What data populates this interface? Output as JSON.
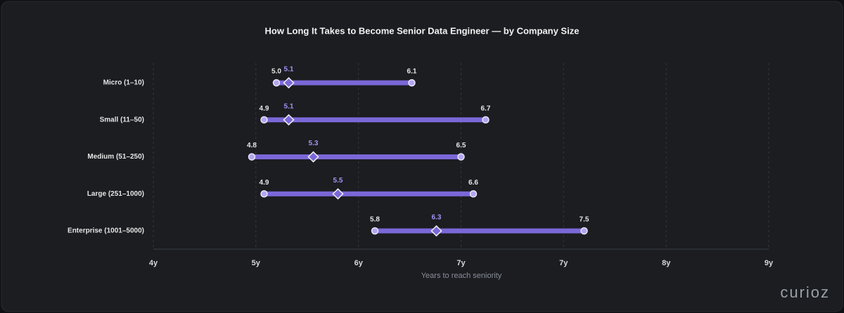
{
  "chart_data": {
    "type": "dumbbell",
    "title": "How Long It Takes to Become Senior Data Engineer — by Company Size",
    "x_label": "Years to reach seniority",
    "watermark": "curioz",
    "categories": [
      "Micro (1–10)",
      "Small (11–50)",
      "Medium (51–250)",
      "Large (251–1000)",
      "Enterprise (1001–5000)"
    ],
    "low": {
      "values": [
        5.0,
        4.9,
        4.8,
        4.9,
        5.8
      ],
      "value_labels": [
        "5.0",
        "4.9",
        "4.8",
        "4.9",
        "5.8"
      ]
    },
    "mid": {
      "values": [
        5.1,
        5.1,
        5.3,
        5.5,
        6.3
      ]
    },
    "high": {
      "values": [
        6.1,
        6.7,
        6.5,
        6.6,
        7.5
      ]
    },
    "color": "#7b68d8",
    "xlim": [
      4,
      9
    ],
    "xticks": [
      {
        "value": 4,
        "label": "4y"
      },
      {
        "value": 4.833,
        "label": "5y"
      },
      {
        "value": 5.667,
        "label": "6y"
      },
      {
        "value": 6.5,
        "label": "7y"
      },
      {
        "value": 7.333,
        "label": "7y"
      },
      {
        "value": 8.167,
        "label": "8y"
      },
      {
        "value": 9,
        "label": "9y"
      }
    ],
    "grid": true
  }
}
